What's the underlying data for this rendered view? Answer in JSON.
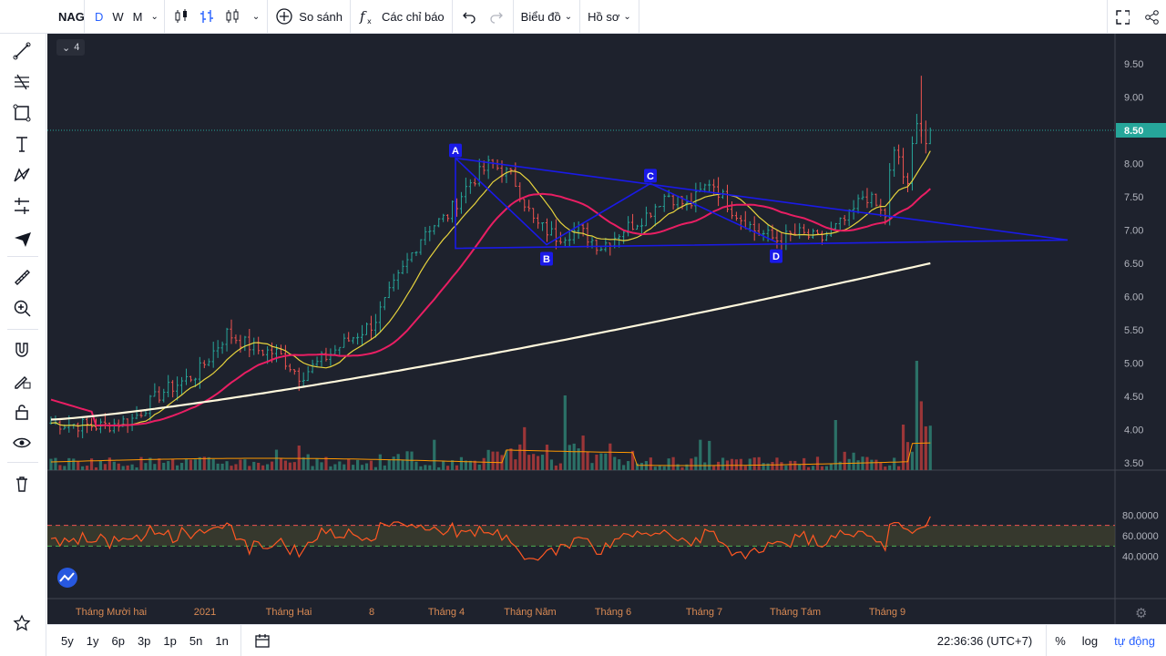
{
  "symbol": "NAG",
  "intervals": [
    "D",
    "W",
    "M"
  ],
  "toolbar": {
    "compare": "So sánh",
    "indicators": "Các chỉ báo",
    "chart_menu": "Biểu đồ",
    "profile_menu": "Hồ sơ"
  },
  "legend_count": "4",
  "price_axis": {
    "ticks": [
      "9.50",
      "9.00",
      "8.50",
      "8.00",
      "7.50",
      "7.00",
      "6.50",
      "6.00",
      "5.50",
      "5.00",
      "4.50",
      "4.00",
      "3.50"
    ],
    "current_price": "8.50"
  },
  "rsi_axis": {
    "ticks": [
      "80.0000",
      "60.0000",
      "40.0000"
    ]
  },
  "time_axis": [
    "Tháng Mười hai",
    "2021",
    "Tháng Hai",
    "8",
    "Tháng 4",
    "Tháng Năm",
    "Tháng 6",
    "Tháng 7",
    "Tháng Tám",
    "Tháng 9"
  ],
  "pattern_labels": [
    "A",
    "B",
    "C",
    "D"
  ],
  "bottom": {
    "ranges": [
      "5y",
      "1y",
      "6p",
      "3p",
      "1p",
      "5n",
      "1n"
    ],
    "clock": "22:36:36 (UTC+7)",
    "percent": "%",
    "log": "log",
    "auto": "tự động"
  },
  "colors": {
    "background": "#1e222d",
    "up": "#26a69a",
    "down": "#ef5350",
    "ma_fast": "#e8d43d",
    "ma_mid": "#e91e63",
    "ma_slow": "#fff8dc",
    "pattern": "#1a1ae8",
    "rsi": "#ff5722",
    "accent": "#2962ff"
  },
  "chart_data": {
    "type": "candlestick",
    "price_range": [
      3.4,
      9.9
    ],
    "rsi_range": [
      30,
      90
    ],
    "pattern_points": [
      {
        "label": "A",
        "price": 8.08
      },
      {
        "label": "B",
        "price": 6.78
      },
      {
        "label": "C",
        "price": 7.7
      },
      {
        "label": "D",
        "price": 6.82
      }
    ]
  }
}
